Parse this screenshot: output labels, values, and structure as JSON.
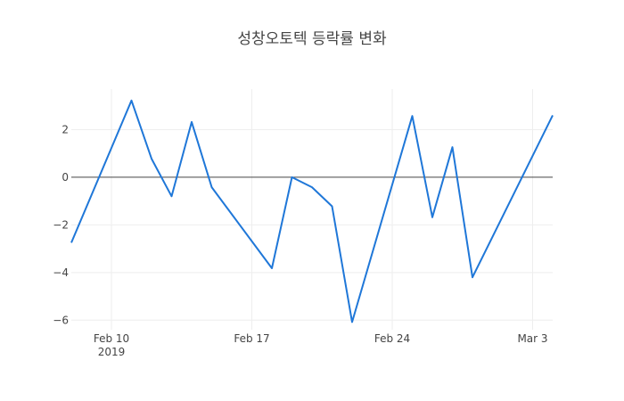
{
  "chart_data": {
    "type": "line",
    "title": "성창오토텍 등락률 변화",
    "xlabel": "",
    "ylabel": "",
    "x": [
      "2019-02-08",
      "2019-02-11",
      "2019-02-12",
      "2019-02-13",
      "2019-02-14",
      "2019-02-15",
      "2019-02-18",
      "2019-02-19",
      "2019-02-20",
      "2019-02-21",
      "2019-02-22",
      "2019-02-25",
      "2019-02-26",
      "2019-02-27",
      "2019-02-28",
      "2019-03-04"
    ],
    "series": [
      {
        "values": [
          -2.75,
          3.22,
          0.78,
          -0.8,
          2.32,
          -0.42,
          -3.82,
          0.0,
          -0.42,
          -1.22,
          -6.08,
          2.57,
          -1.68,
          1.26,
          -4.2,
          2.6
        ],
        "color": "#1f77d8"
      }
    ],
    "xlim": [
      "2019-02-08",
      "2019-03-04"
    ],
    "ylim": [
      -6.4,
      3.7
    ],
    "y_ticks": [
      2,
      0,
      -2,
      -4,
      -6
    ],
    "y_tick_labels": [
      "2",
      "0",
      "−2",
      "−4",
      "−6"
    ],
    "x_ticks": [
      "2019-02-10",
      "2019-02-17",
      "2019-02-24",
      "2019-03-03"
    ],
    "x_tick_labels": [
      {
        "main": "Feb 10",
        "sub": "2019"
      },
      {
        "main": "Feb 17",
        "sub": ""
      },
      {
        "main": "Feb 24",
        "sub": ""
      },
      {
        "main": "Mar 3",
        "sub": ""
      }
    ],
    "grid": true,
    "zero_line": true,
    "legend": "none"
  }
}
